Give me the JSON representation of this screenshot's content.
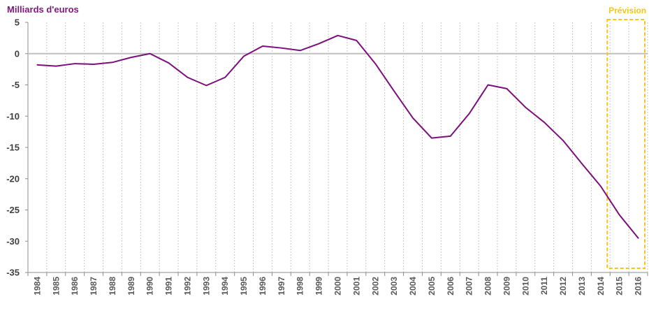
{
  "chart_data": {
    "type": "line",
    "title": "",
    "xlabel": "",
    "ylabel": "Milliards d'euros",
    "ylim": [
      -35,
      5
    ],
    "yticks": [
      5,
      0,
      -5,
      -10,
      -15,
      -20,
      -25,
      -30,
      -35
    ],
    "grid": "vertical dashed per category",
    "categories": [
      "1984",
      "1985",
      "1986",
      "1987",
      "1988",
      "1989",
      "1990",
      "1991",
      "1992",
      "1993",
      "1994",
      "1995",
      "1996",
      "1997",
      "1998",
      "1999",
      "2000",
      "2001",
      "2002",
      "2003",
      "2004",
      "2005",
      "2006",
      "2007",
      "2008",
      "2009",
      "2010",
      "2011",
      "2012",
      "2013",
      "2014",
      "2015",
      "2016"
    ],
    "series": [
      {
        "color": "#7b0f7b",
        "values": [
          -1.8,
          -2.0,
          -1.6,
          -1.7,
          -1.4,
          -0.6,
          0.0,
          -1.5,
          -3.8,
          -5.1,
          -3.8,
          -0.4,
          1.2,
          0.9,
          0.5,
          1.6,
          2.9,
          2.1,
          -1.6,
          -6.0,
          -10.3,
          -13.5,
          -13.2,
          -9.6,
          -5.0,
          -5.6,
          -8.6,
          -11.0,
          -13.9,
          -17.6,
          -21.2,
          -25.8,
          -29.5
        ]
      }
    ],
    "forecast": {
      "label": "Prévision",
      "from": "2015",
      "to": "2016",
      "color": "#f5c518"
    }
  }
}
